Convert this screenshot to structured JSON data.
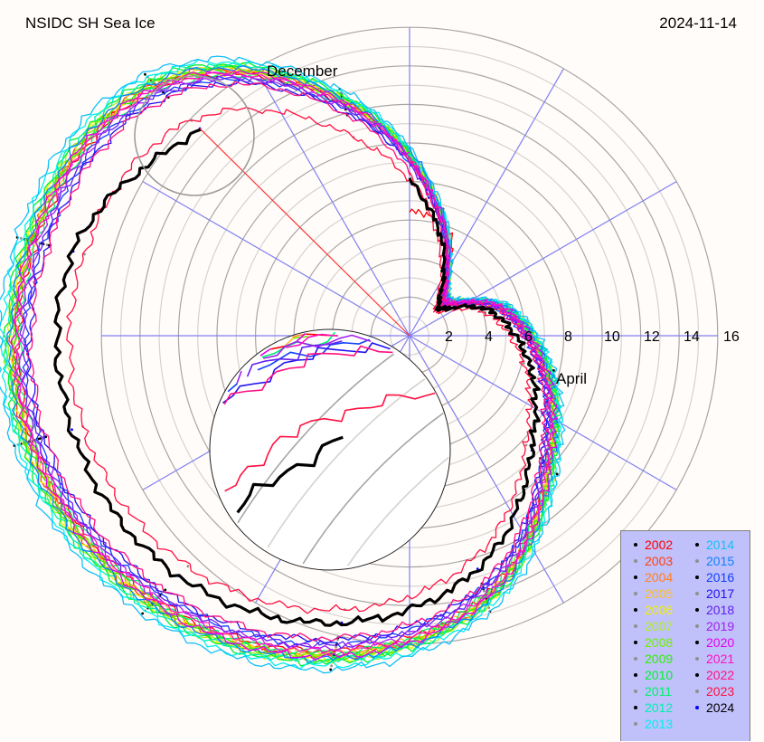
{
  "header": {
    "title": "NSIDC SH Sea Ice",
    "date": "2024-11-14"
  },
  "chart_data": {
    "type": "line",
    "projection": "polar",
    "title": "NSIDC SH Sea Ice",
    "date": "2024-11-14",
    "angle_meaning": "day of year, clockwise from top",
    "radius_meaning": "sea ice extent (million km²)",
    "ring_ticks": [
      2,
      4,
      6,
      8,
      10,
      12,
      14,
      16
    ],
    "radius_range": [
      0,
      16
    ],
    "grid": true,
    "month_labels": [
      {
        "label": "December",
        "month": 12
      },
      {
        "label": "April",
        "month": 4
      },
      {
        "label": "June",
        "month": 6
      }
    ],
    "x_doy": [
      15,
      46,
      74,
      105,
      135,
      166,
      196,
      227,
      258,
      288,
      319,
      349
    ],
    "current_day_doy": 319,
    "current_value": 15.3,
    "legend_placement": "bottom-right",
    "series": [
      {
        "name": "2002",
        "color": "#ff0000",
        "marker": "#000000",
        "values": [
          6.4,
          2.6,
          5.0,
          7.2,
          9.8,
          14.0,
          16.8,
          19.0,
          20.3,
          20.0,
          18.3,
          12.5
        ]
      },
      {
        "name": "2003",
        "color": "#ff4010",
        "marker": "#909090",
        "values": [
          6.5,
          2.7,
          5.1,
          7.4,
          10.0,
          14.3,
          17.1,
          19.3,
          20.6,
          20.3,
          18.6,
          12.7
        ]
      },
      {
        "name": "2004",
        "color": "#ff8020",
        "marker": "#000000",
        "values": [
          6.5,
          2.7,
          5.1,
          7.3,
          9.9,
          14.2,
          17.0,
          19.2,
          20.5,
          20.2,
          18.5,
          12.7
        ]
      },
      {
        "name": "2005",
        "color": "#ffc020",
        "marker": "#909090",
        "values": [
          6.4,
          2.6,
          5.0,
          7.3,
          9.9,
          14.1,
          16.9,
          19.1,
          20.4,
          20.1,
          18.4,
          12.6
        ]
      },
      {
        "name": "2006",
        "color": "#f0f000",
        "marker": "#000000",
        "values": [
          6.6,
          2.7,
          5.2,
          7.4,
          10.1,
          14.4,
          17.2,
          19.4,
          20.7,
          20.4,
          18.7,
          12.8
        ]
      },
      {
        "name": "2007",
        "color": "#b0f020",
        "marker": "#909090",
        "values": [
          6.6,
          2.8,
          5.2,
          7.5,
          10.2,
          14.5,
          17.3,
          19.5,
          20.8,
          20.5,
          18.8,
          12.9
        ]
      },
      {
        "name": "2008",
        "color": "#70f000",
        "marker": "#000000",
        "values": [
          6.5,
          2.8,
          5.0,
          7.3,
          10.0,
          14.1,
          17.0,
          19.3,
          20.4,
          20.3,
          18.5,
          12.6
        ]
      },
      {
        "name": "2009",
        "color": "#30f000",
        "marker": "#909090",
        "values": [
          6.4,
          2.7,
          5.2,
          7.4,
          10.1,
          14.3,
          17.2,
          19.2,
          20.6,
          20.2,
          18.6,
          12.8
        ]
      },
      {
        "name": "2010",
        "color": "#00f030",
        "marker": "#000000",
        "values": [
          6.6,
          2.8,
          5.2,
          7.5,
          10.2,
          14.5,
          17.4,
          19.6,
          20.9,
          20.6,
          18.9,
          13.0
        ]
      },
      {
        "name": "2011",
        "color": "#00f070",
        "marker": "#909090",
        "values": [
          6.3,
          2.6,
          5.1,
          7.2,
          9.7,
          14.0,
          16.9,
          19.0,
          20.2,
          20.0,
          18.2,
          12.4
        ]
      },
      {
        "name": "2012",
        "color": "#00f0b0",
        "marker": "#000000",
        "values": [
          6.5,
          2.7,
          5.3,
          7.5,
          10.2,
          14.4,
          17.3,
          19.6,
          20.9,
          20.5,
          18.9,
          12.9
        ]
      },
      {
        "name": "2013",
        "color": "#00f0f0",
        "marker": "#909090",
        "values": [
          6.7,
          2.8,
          5.3,
          7.6,
          10.4,
          14.7,
          17.6,
          19.8,
          21.1,
          20.8,
          19.1,
          13.1
        ]
      },
      {
        "name": "2014",
        "color": "#10c0f8",
        "marker": "#000000",
        "values": [
          6.8,
          2.9,
          5.4,
          7.7,
          10.5,
          14.9,
          17.8,
          20.0,
          21.3,
          21.0,
          19.3,
          13.3
        ]
      },
      {
        "name": "2015",
        "color": "#1080ff",
        "marker": "#909090",
        "values": [
          6.6,
          2.7,
          5.2,
          7.4,
          10.1,
          14.4,
          17.2,
          19.4,
          20.7,
          20.4,
          18.7,
          12.8
        ]
      },
      {
        "name": "2016",
        "color": "#1040ff",
        "marker": "#000000",
        "values": [
          6.2,
          2.5,
          4.8,
          7.0,
          9.5,
          13.6,
          16.4,
          18.6,
          19.9,
          19.6,
          17.9,
          12.2
        ]
      },
      {
        "name": "2017",
        "color": "#2010f0",
        "marker": "#909090",
        "values": [
          6.2,
          2.4,
          4.8,
          6.9,
          9.4,
          13.5,
          16.2,
          18.4,
          19.7,
          19.4,
          17.7,
          12.0
        ]
      },
      {
        "name": "2018",
        "color": "#6020f0",
        "marker": "#000000",
        "values": [
          6.3,
          2.5,
          4.9,
          7.0,
          9.6,
          13.7,
          16.5,
          18.7,
          20.0,
          19.7,
          18.0,
          12.3
        ]
      },
      {
        "name": "2019",
        "color": "#a020f0",
        "marker": "#909090",
        "values": [
          6.3,
          2.5,
          4.9,
          7.1,
          9.7,
          13.8,
          16.6,
          18.8,
          20.1,
          19.8,
          18.1,
          12.3
        ]
      },
      {
        "name": "2020",
        "color": "#e000f0",
        "marker": "#000000",
        "values": [
          6.5,
          2.6,
          5.1,
          7.3,
          10.0,
          14.2,
          17.1,
          19.2,
          20.4,
          20.2,
          18.4,
          12.6
        ]
      },
      {
        "name": "2021",
        "color": "#ff10c0",
        "marker": "#909090",
        "values": [
          6.4,
          2.7,
          5.0,
          7.1,
          9.8,
          14.1,
          16.8,
          18.9,
          20.3,
          20.1,
          18.3,
          12.5
        ]
      },
      {
        "name": "2022",
        "color": "#ff1080",
        "marker": "#000000",
        "values": [
          6.1,
          2.4,
          4.7,
          6.9,
          9.3,
          13.4,
          16.1,
          18.3,
          19.6,
          19.3,
          17.6,
          11.9
        ]
      },
      {
        "name": "2023",
        "color": "#ff1040",
        "marker": "#909090",
        "values": [
          5.5,
          1.9,
          4.1,
          6.1,
          8.3,
          12.0,
          14.6,
          16.6,
          17.6,
          17.4,
          15.9,
          10.7
        ]
      },
      {
        "name": "2024",
        "color": "#000000",
        "marker": "#0000ff",
        "values": [
          5.8,
          2.1,
          4.4,
          6.4,
          8.7,
          12.6,
          15.3,
          17.3,
          18.2,
          18.0,
          15.3
        ]
      }
    ]
  }
}
